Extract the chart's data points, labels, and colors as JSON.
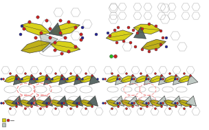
{
  "background_color": "#ffffff",
  "figure_width": 3.04,
  "figure_height": 1.89,
  "dpi": 100,
  "yellow_color": "#d4cc00",
  "yellow_dark": "#b8a800",
  "dark_gray_color": "#4a5a58",
  "light_gray_color": "#b8c4be",
  "red_atom": "#cc2222",
  "blue_atom": "#222299",
  "navy_atom": "#111166",
  "pink_circle_color": "#ee8888",
  "organic_color": "#aaaaaa"
}
